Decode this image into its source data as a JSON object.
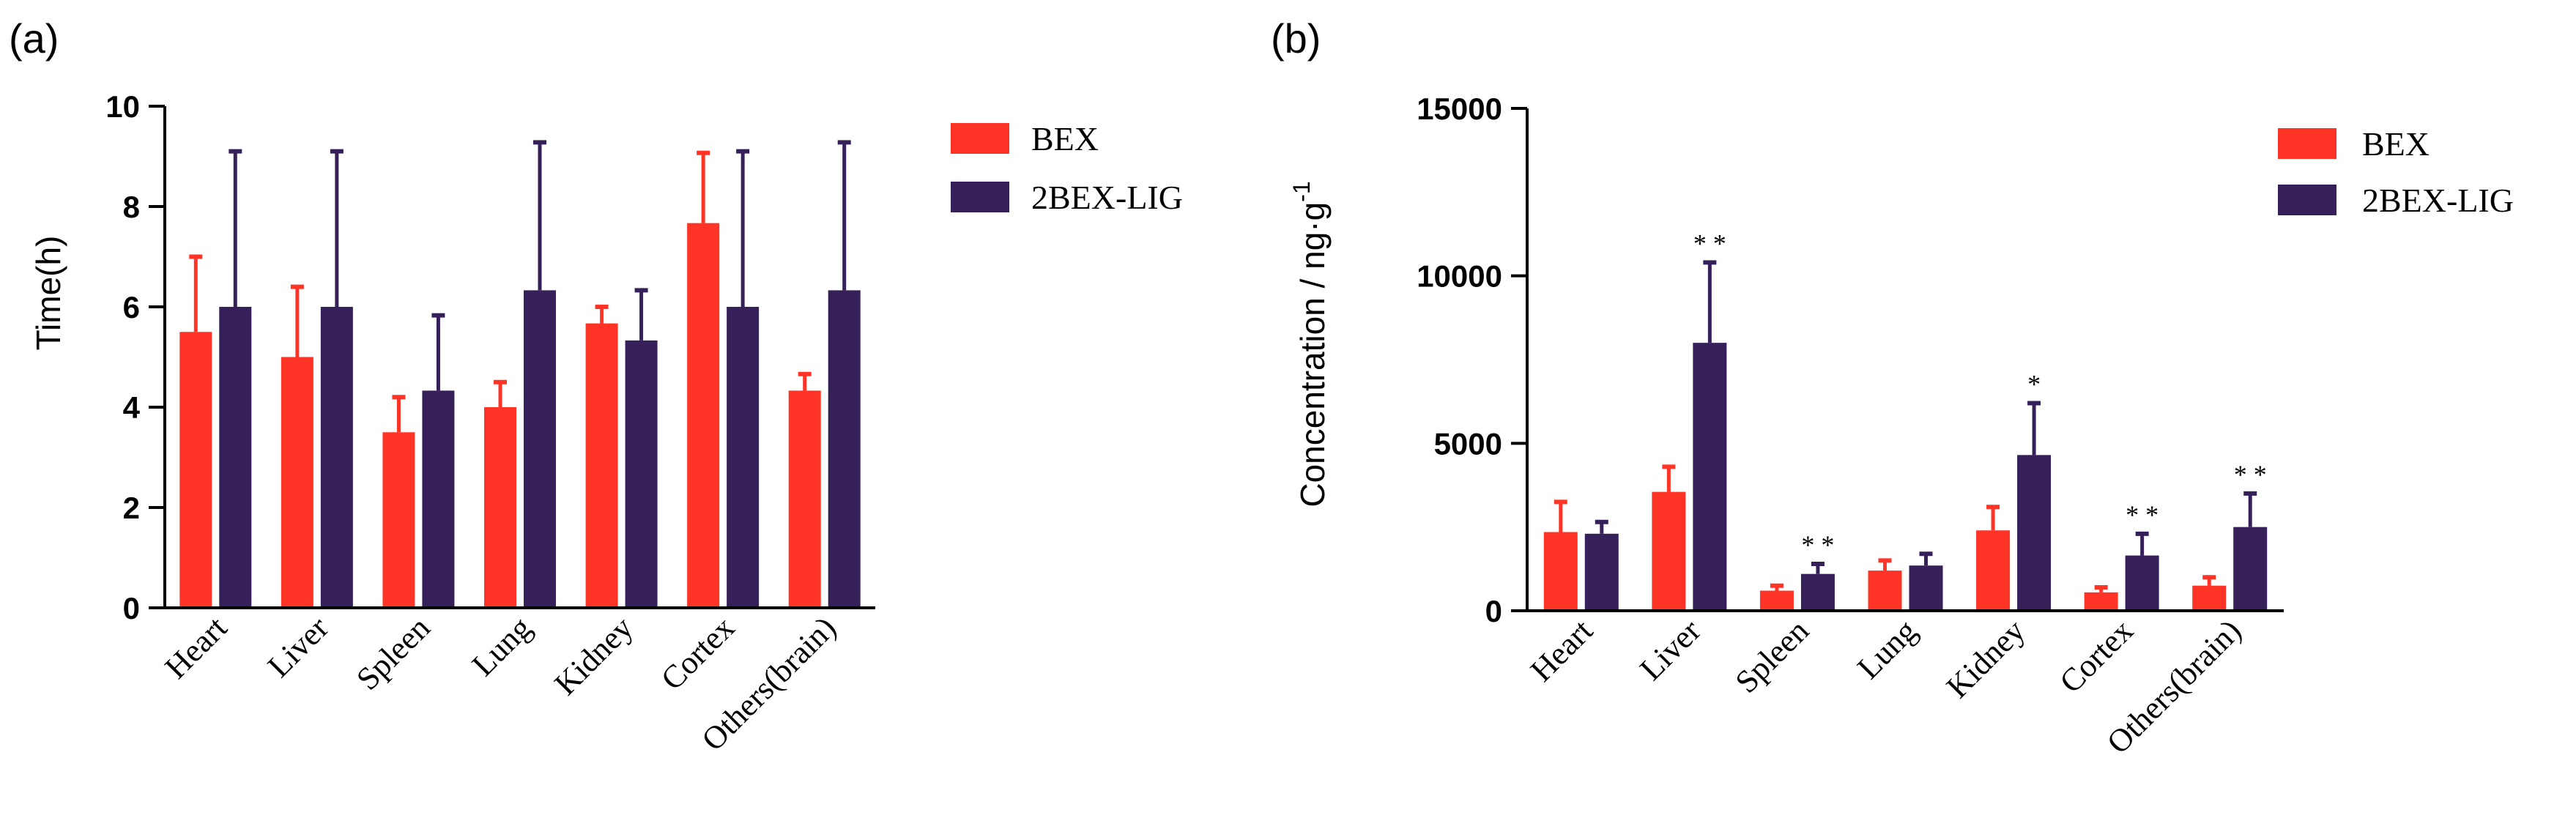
{
  "colors": {
    "bex": "#ff3326",
    "ligand": "#35205a",
    "axis": "#000000"
  },
  "chart_data": [
    {
      "panel_label": "(a)",
      "type": "bar",
      "title": "",
      "xlabel": "",
      "ylabel": "Time(h)",
      "ylim": [
        0,
        10
      ],
      "yticks": [
        0,
        2,
        4,
        6,
        8,
        10
      ],
      "yticks_text": [
        "0",
        "2",
        "4",
        "6",
        "8",
        "10"
      ],
      "categories": [
        "Heart",
        "Liver",
        "Spleen",
        "Lung",
        "Kidney",
        "Cortex",
        "Others(brain)"
      ],
      "legend": {
        "position": "top-right",
        "entries": [
          "BEX",
          "2BEX-LIG"
        ]
      },
      "series": [
        {
          "name": "BEX",
          "values": [
            5.5,
            5.0,
            3.5,
            4.0,
            5.67,
            7.67,
            4.33
          ],
          "errors": [
            1.5,
            1.4,
            0.7,
            0.5,
            0.33,
            1.4,
            0.33
          ],
          "significance": [
            "",
            "",
            "",
            "",
            "",
            "",
            ""
          ]
        },
        {
          "name": "2BEX-LIG",
          "values": [
            6.0,
            6.0,
            4.33,
            6.33,
            5.33,
            6.0,
            6.33
          ],
          "errors": [
            3.1,
            3.1,
            1.5,
            2.95,
            1.0,
            3.1,
            2.95
          ],
          "significance": [
            "",
            "",
            "",
            "",
            "",
            "",
            ""
          ]
        }
      ]
    },
    {
      "panel_label": "(b)",
      "type": "bar",
      "title": "",
      "xlabel": "",
      "ylabel": "Concentration / ng·g",
      "ylabel_sup": "-1",
      "ylim": [
        0,
        15000
      ],
      "yticks": [
        0,
        5000,
        10000,
        15000
      ],
      "yticks_text": [
        "0",
        "5000",
        "10000",
        "15000"
      ],
      "categories": [
        "Heart",
        "Liver",
        "Spleen",
        "Lung",
        "Kidney",
        "Cortex",
        "Others(brain)"
      ],
      "legend": {
        "position": "top-right",
        "entries": [
          "BEX",
          "2BEX-LIG"
        ]
      },
      "series": [
        {
          "name": "BEX",
          "values": [
            2350,
            3550,
            600,
            1200,
            2400,
            550,
            750
          ],
          "errors": [
            900,
            750,
            150,
            300,
            700,
            150,
            250
          ],
          "significance": [
            "",
            "",
            "",
            "",
            "",
            "",
            ""
          ]
        },
        {
          "name": "2BEX-LIG",
          "values": [
            2300,
            8000,
            1100,
            1350,
            4650,
            1650,
            2500
          ],
          "errors": [
            350,
            2400,
            300,
            350,
            1550,
            650,
            1000
          ],
          "significance": [
            "",
            "**",
            "**",
            "",
            "*",
            "**",
            "**"
          ]
        }
      ]
    }
  ]
}
